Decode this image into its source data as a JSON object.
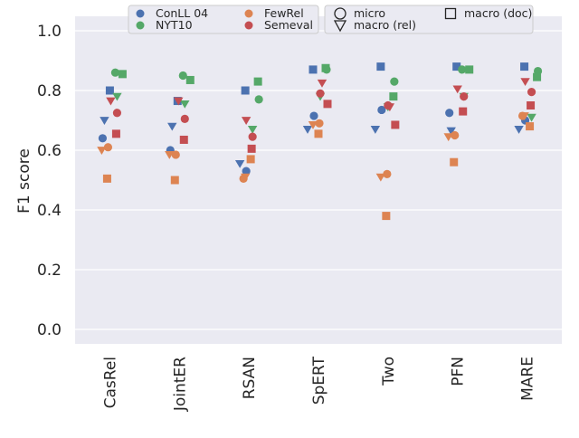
{
  "chart_data": {
    "type": "scatter",
    "title": "",
    "xlabel": "",
    "ylabel": "F1 score",
    "ylim": [
      -0.08,
      1.05
    ],
    "yticks": [
      0.0,
      0.2,
      0.4,
      0.6,
      0.8,
      1.0
    ],
    "ytick_labels": [
      "0.0",
      "0.2",
      "0.4",
      "0.6",
      "0.8",
      "1.0"
    ],
    "grid": true,
    "legend_position": "top",
    "categories": [
      "CasRel",
      "JointER",
      "RSAN",
      "SpERT",
      "Two",
      "PFN",
      "MARE"
    ],
    "dataset_legend": [
      {
        "name": "ConLL 04",
        "color": "#4c72b0"
      },
      {
        "name": "NYT10",
        "color": "#55a868"
      },
      {
        "name": "FewRel",
        "color": "#dd8452"
      },
      {
        "name": "Semeval",
        "color": "#c44e52"
      }
    ],
    "metric_legend": [
      {
        "name": "micro",
        "marker": "circle"
      },
      {
        "name": "macro (doc)",
        "marker": "square"
      },
      {
        "name": "macro (rel)",
        "marker": "triangle"
      }
    ],
    "series": [
      {
        "dataset": "ConLL 04",
        "metric": "micro",
        "values": [
          0.64,
          0.6,
          0.53,
          0.715,
          0.735,
          0.725,
          0.7
        ]
      },
      {
        "dataset": "ConLL 04",
        "metric": "macro (rel)",
        "values": [
          0.7,
          0.68,
          0.555,
          0.67,
          0.67,
          0.665,
          0.67
        ]
      },
      {
        "dataset": "ConLL 04",
        "metric": "macro (doc)",
        "values": [
          0.8,
          0.765,
          0.8,
          0.87,
          0.88,
          0.88,
          0.88
        ]
      },
      {
        "dataset": "NYT10",
        "metric": "micro",
        "values": [
          0.86,
          0.85,
          0.77,
          0.87,
          0.83,
          0.87,
          0.865
        ]
      },
      {
        "dataset": "NYT10",
        "metric": "macro (rel)",
        "values": [
          0.78,
          0.755,
          0.67,
          0.78,
          0.745,
          0.78,
          0.71
        ]
      },
      {
        "dataset": "NYT10",
        "metric": "macro (doc)",
        "values": [
          0.855,
          0.835,
          0.83,
          0.875,
          0.78,
          0.87,
          0.845
        ]
      },
      {
        "dataset": "FewRel",
        "metric": "micro",
        "values": [
          0.61,
          0.585,
          0.505,
          0.69,
          0.52,
          0.65,
          0.715
        ]
      },
      {
        "dataset": "FewRel",
        "metric": "macro (rel)",
        "values": [
          0.6,
          0.585,
          0.51,
          0.685,
          0.51,
          0.645,
          0.715
        ]
      },
      {
        "dataset": "FewRel",
        "metric": "macro (doc)",
        "values": [
          0.505,
          0.5,
          0.57,
          0.655,
          0.38,
          0.56,
          0.68
        ]
      },
      {
        "dataset": "Semeval",
        "metric": "micro",
        "values": [
          0.725,
          0.705,
          0.645,
          0.79,
          0.75,
          0.78,
          0.795
        ]
      },
      {
        "dataset": "Semeval",
        "metric": "macro (rel)",
        "values": [
          0.765,
          0.765,
          0.7,
          0.825,
          0.745,
          0.805,
          0.83
        ]
      },
      {
        "dataset": "Semeval",
        "metric": "macro (doc)",
        "values": [
          0.655,
          0.635,
          0.605,
          0.755,
          0.685,
          0.73,
          0.75
        ]
      }
    ]
  }
}
